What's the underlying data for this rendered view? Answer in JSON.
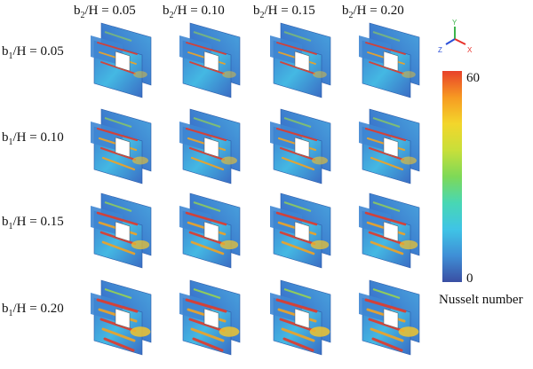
{
  "columns": [
    {
      "var": "b",
      "sub": "2",
      "rest": "/H = 0.05"
    },
    {
      "var": "b",
      "sub": "2",
      "rest": "/H = 0.10"
    },
    {
      "var": "b",
      "sub": "2",
      "rest": "/H = 0.15"
    },
    {
      "var": "b",
      "sub": "2",
      "rest": "/H = 0.20"
    }
  ],
  "rows": [
    {
      "var": "b",
      "sub": "1",
      "rest": "/H = 0.05",
      "heat": 0.3
    },
    {
      "var": "b",
      "sub": "1",
      "rest": "/H = 0.10",
      "heat": 0.5
    },
    {
      "var": "b",
      "sub": "1",
      "rest": "/H = 0.15",
      "heat": 0.7
    },
    {
      "var": "b",
      "sub": "1",
      "rest": "/H = 0.20",
      "heat": 0.9
    }
  ],
  "triad": {
    "y": "Y",
    "z": "Z",
    "x": "X",
    "y_color": "#3cb44b",
    "z_color": "#2b4fd8",
    "x_color": "#e8312a"
  },
  "colorbar": {
    "max_label": "60",
    "min_label": "0",
    "title": "Nusselt number",
    "stops": [
      "#3a4fa3",
      "#3f8fd6",
      "#3fc4e6",
      "#48d7b4",
      "#7ed957",
      "#c8df3a",
      "#f3d62b",
      "#f79a22",
      "#e8412a"
    ]
  }
}
